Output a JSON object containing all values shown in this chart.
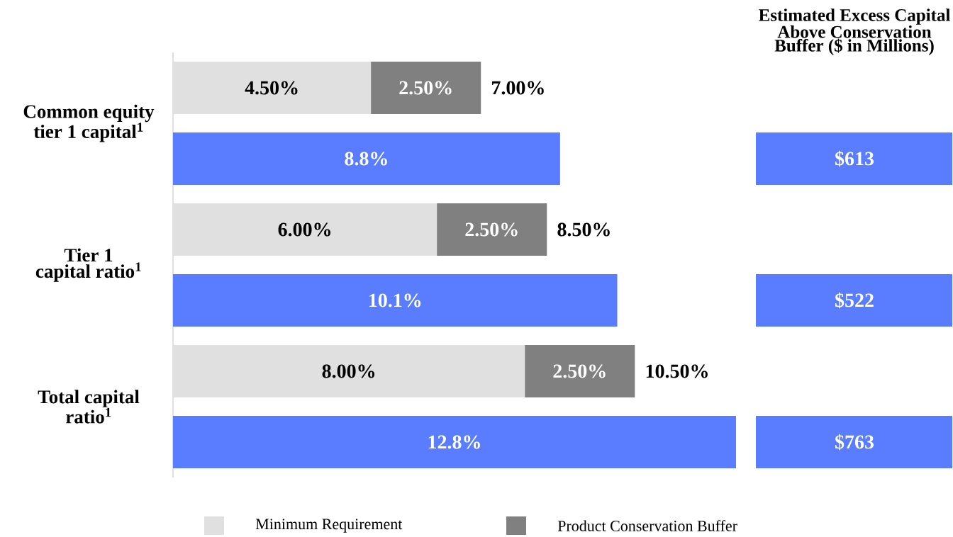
{
  "chart_data": [
    {
      "type": "bar",
      "orientation": "horizontal",
      "stacked": true,
      "tick_labels": "y",
      "legend": "bottom",
      "categories": [
        "Common equity tier 1 capital$^{1}$",
        null,
        "Tier 1 capital ratio$^{1}$",
        null,
        "Total capital ratio$^{1}$",
        null
      ],
      "series": [
        {
          "name": "Minimum Requirement",
          "color": "#e0e0e0",
          "values": [
            4.5,
            null,
            6,
            null,
            8,
            null
          ],
          "value_labels": [
            "4.50%",
            null,
            "6.00%",
            null,
            "8.00%",
            null
          ]
        },
        {
          "name": "Product Conservation Buffer",
          "color": "#808080",
          "values": [
            2.5,
            null,
            2.5,
            null,
            2.5,
            null
          ],
          "value_labels": [
            "2.50%",
            null,
            "2.50%",
            null,
            "2.50%",
            null
          ]
        },
        {
          "color": "#5a7dff",
          "values": [
            null,
            8.8,
            null,
            10.1,
            null,
            12.8
          ],
          "value_labels": [
            null,
            "8.8%",
            null,
            "10.1%",
            null,
            "12.8%"
          ]
        }
      ],
      "totals": [
        "7.00%",
        null,
        "8.50%",
        null,
        "10.50%",
        null
      ]
    },
    {
      "type": "other",
      "title": "Estimated Excess Capital Above Conservation Buffer ($ in Millions)",
      "annotations": [
        "$613",
        "$522",
        "$763"
      ]
    }
  ]
}
